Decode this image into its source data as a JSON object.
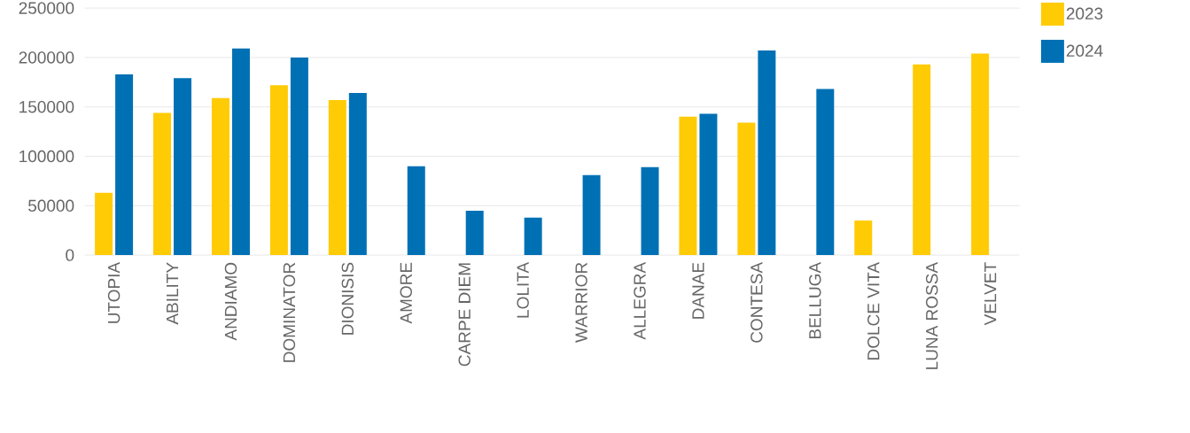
{
  "chart_data": {
    "type": "bar",
    "categories": [
      "UTOPIA",
      "ABILITY",
      "ANDIAMO",
      "DOMINATOR",
      "DIONISIS",
      "AMORE",
      "CARPE DIEM",
      "LOLITA",
      "WARRIOR",
      "ALLEGRA",
      "DANAE",
      "CONTESA",
      "BELLUGA",
      "DOLCE  VITA",
      "LUNA ROSSA",
      "VELVET"
    ],
    "series": [
      {
        "name": "2023",
        "color": "#ffcb05",
        "values": [
          63000,
          144000,
          159000,
          172000,
          157000,
          null,
          null,
          null,
          null,
          null,
          140000,
          134000,
          null,
          35000,
          193000,
          204000
        ]
      },
      {
        "name": "2024",
        "color": "#0070b5",
        "values": [
          183000,
          179000,
          209000,
          200000,
          164000,
          90000,
          45000,
          38000,
          81000,
          89000,
          143000,
          207000,
          168000,
          null,
          null,
          null
        ]
      }
    ],
    "ylim": [
      0,
      250000
    ],
    "yticks": [
      0,
      50000,
      100000,
      150000,
      200000,
      250000
    ],
    "grid": "y",
    "legend": "top right"
  }
}
